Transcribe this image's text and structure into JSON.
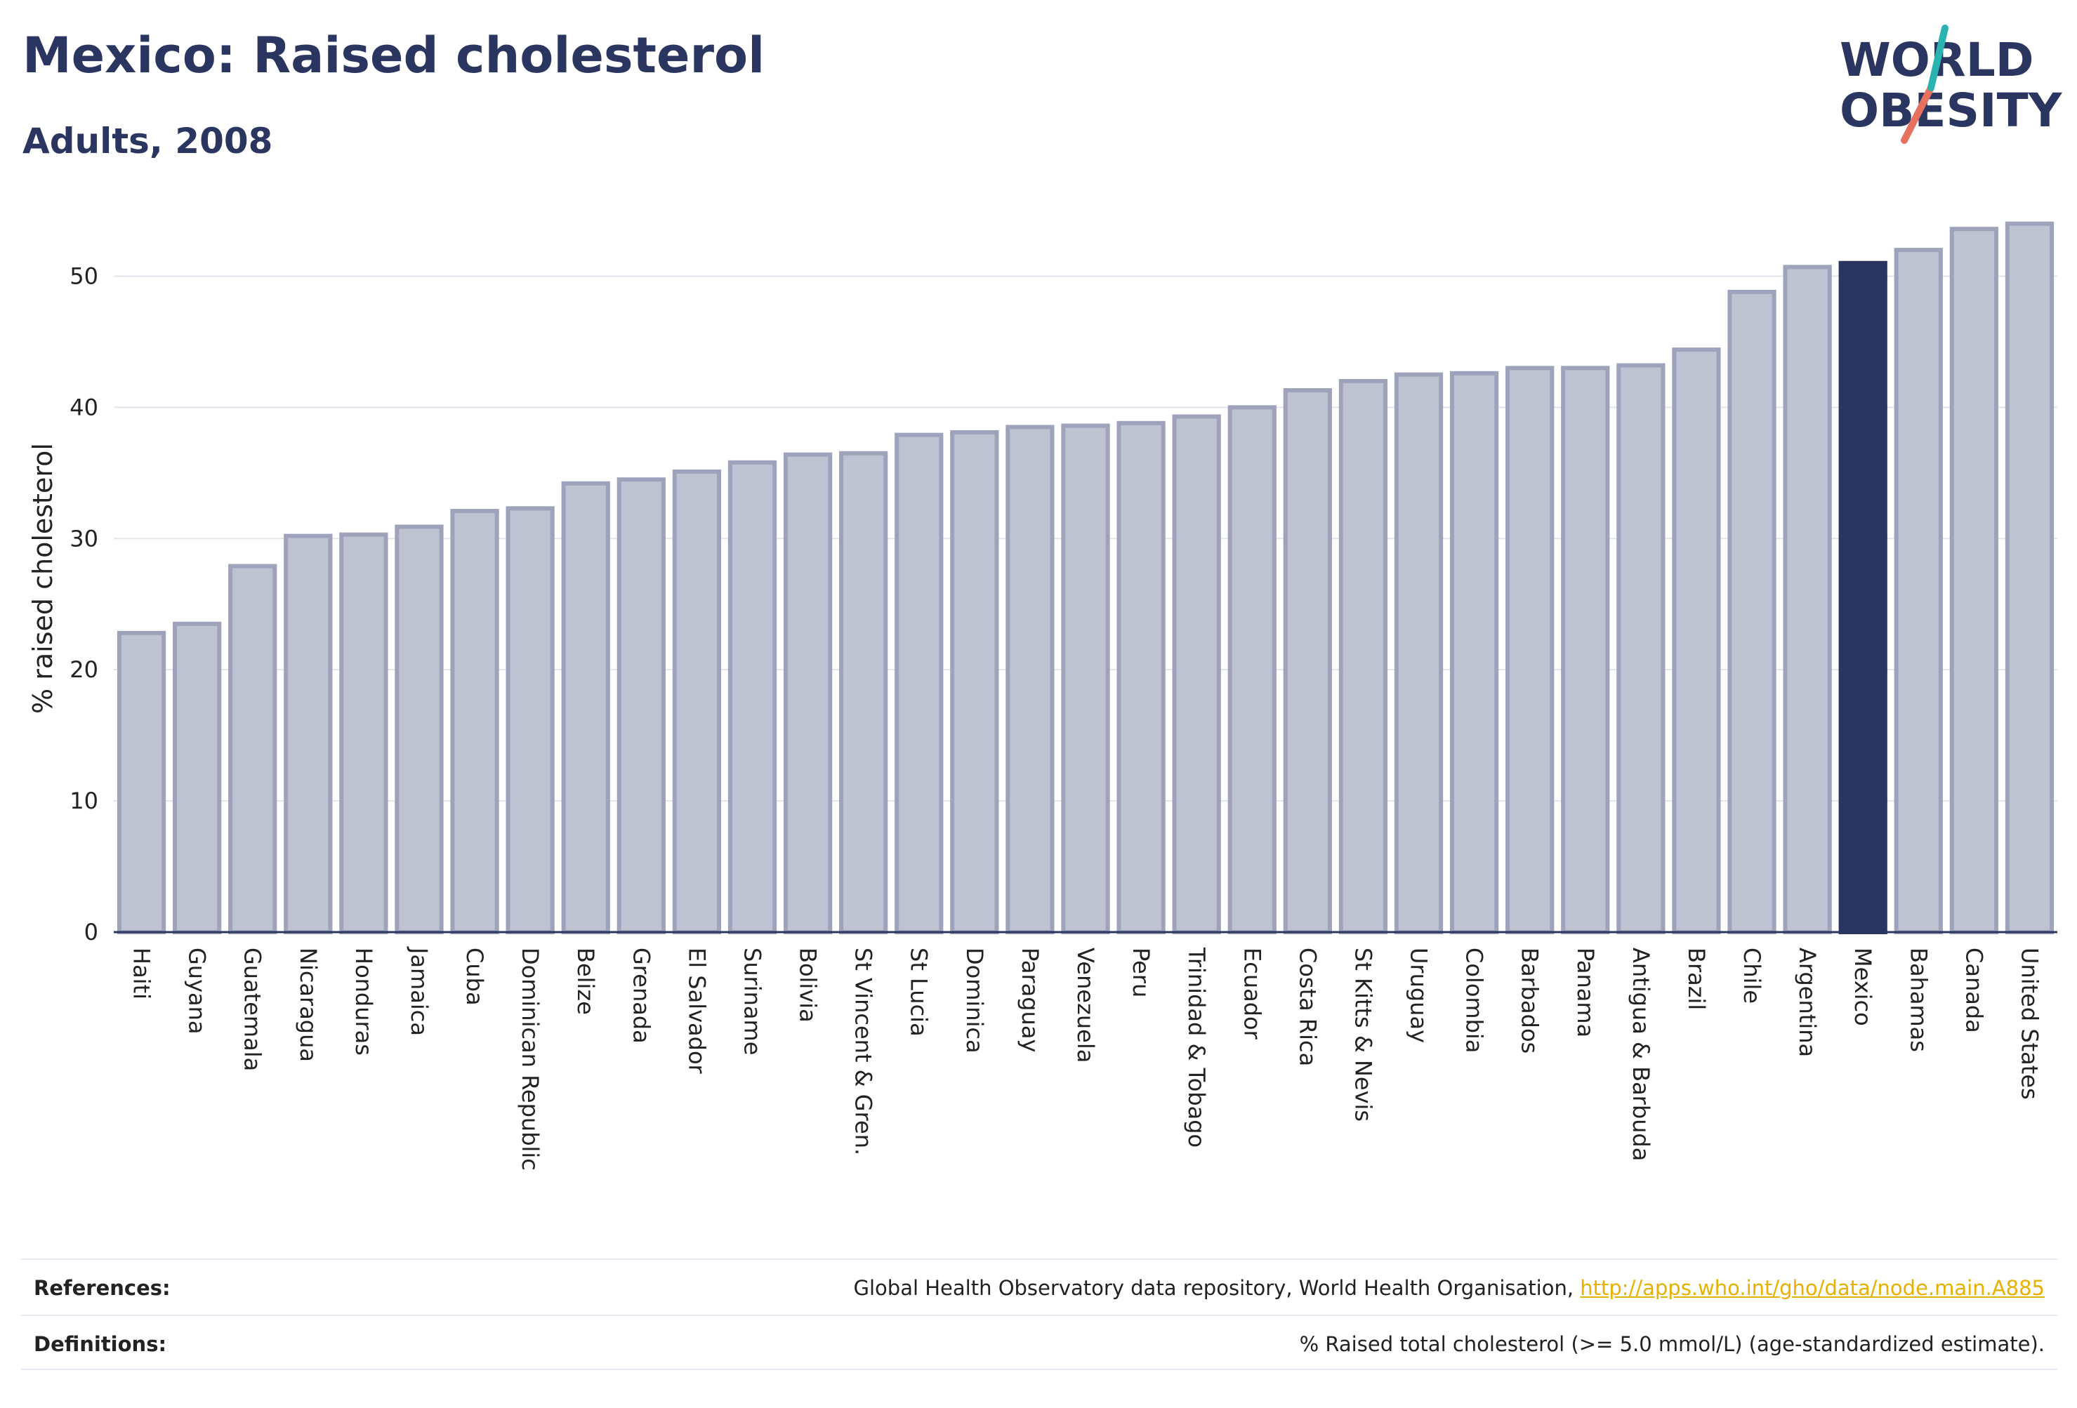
{
  "header": {
    "title": "Mexico: Raised cholesterol",
    "subtitle": "Adults, 2008"
  },
  "logo": {
    "line1": "WORLD",
    "line2": "OBESITY",
    "colors": {
      "text": "#2a3560",
      "teal": "#2bb3b1",
      "coral": "#e8705f"
    }
  },
  "chart_data": {
    "type": "bar",
    "ylabel": "% raised cholesterol",
    "xlabel": "",
    "ylim": [
      0,
      55
    ],
    "yticks": [
      0,
      10,
      20,
      30,
      40,
      50
    ],
    "grid": true,
    "highlight": "Mexico",
    "colors": {
      "bar": "#bfc2d0",
      "bar_edge": "#9ea3bb",
      "highlight": "#2a3560",
      "grid": "#e3e5ec"
    },
    "categories": [
      "Haiti",
      "Guyana",
      "Guatemala",
      "Nicaragua",
      "Honduras",
      "Jamaica",
      "Cuba",
      "Dominican Republic",
      "Belize",
      "Grenada",
      "El Salvador",
      "Suriname",
      "Bolivia",
      "St Vincent & Gren.",
      "St Lucia",
      "Dominica",
      "Paraguay",
      "Venezuela",
      "Peru",
      "Trinidad & Tobago",
      "Ecuador",
      "Costa Rica",
      "St Kitts & Nevis",
      "Uruguay",
      "Colombia",
      "Barbados",
      "Panama",
      "Antigua & Barbuda",
      "Brazil",
      "Chile",
      "Argentina",
      "Mexico",
      "Bahamas",
      "Canada",
      "United States"
    ],
    "values": [
      22.8,
      23.5,
      27.9,
      30.2,
      30.3,
      30.9,
      32.1,
      32.3,
      34.2,
      34.5,
      35.1,
      35.8,
      36.4,
      36.5,
      37.9,
      38.1,
      38.5,
      38.6,
      38.8,
      39.3,
      40.0,
      41.3,
      42.0,
      42.5,
      42.6,
      43.0,
      43.0,
      43.2,
      44.4,
      48.8,
      50.7,
      51.0,
      52.0,
      53.6,
      54.0
    ]
  },
  "footer": {
    "references_label": "References:",
    "references_text": "Global Health Observatory data repository, World Health Organisation, ",
    "references_link": "http://apps.who.int/gho/data/node.main.A885",
    "definitions_label": "Definitions:",
    "definitions_text": "% Raised total cholesterol (>= 5.0 mmol/L) (age-standardized estimate)."
  }
}
